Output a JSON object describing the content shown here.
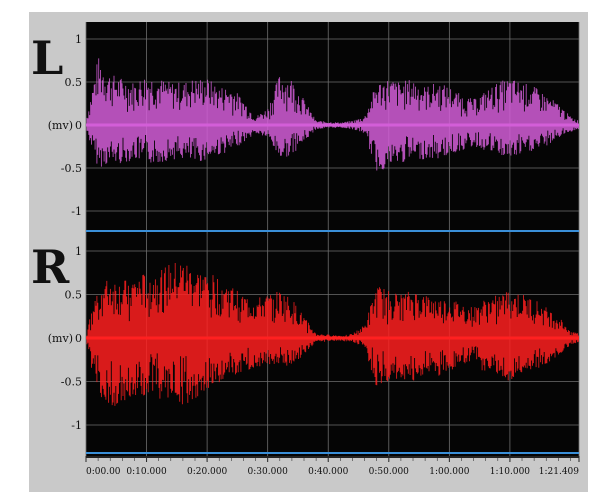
{
  "chart_data": [
    {
      "type": "line",
      "channel_label": "L",
      "ylabel": "(mv)",
      "yticks": [
        "1",
        "0.5",
        "0",
        "-0.5",
        "-1"
      ],
      "ylim": [
        -1.15,
        1.15
      ],
      "grid": true,
      "color": "#d35ed8",
      "x": [
        0,
        2,
        4,
        6,
        8,
        10,
        12,
        14,
        16,
        18,
        20,
        22,
        24,
        26,
        28,
        30,
        32,
        34,
        36,
        38,
        40,
        42,
        44,
        46,
        48,
        50,
        52,
        54,
        56,
        58,
        60,
        62,
        64,
        66,
        68,
        70,
        72,
        74,
        76,
        78,
        80,
        81.409
      ],
      "y_upper": [
        0.05,
        0.8,
        0.6,
        0.55,
        0.5,
        0.6,
        0.55,
        0.5,
        0.5,
        0.55,
        0.55,
        0.45,
        0.45,
        0.3,
        0.1,
        0.2,
        0.6,
        0.55,
        0.3,
        0.05,
        0.04,
        0.03,
        0.05,
        0.1,
        0.5,
        0.55,
        0.5,
        0.55,
        0.45,
        0.5,
        0.45,
        0.35,
        0.3,
        0.4,
        0.5,
        0.55,
        0.5,
        0.45,
        0.35,
        0.25,
        0.1,
        0.05
      ],
      "y_lower": [
        -0.05,
        -0.5,
        -0.45,
        -0.45,
        -0.4,
        -0.45,
        -0.45,
        -0.4,
        -0.4,
        -0.45,
        -0.4,
        -0.35,
        -0.3,
        -0.2,
        -0.1,
        -0.15,
        -0.4,
        -0.35,
        -0.2,
        -0.05,
        -0.04,
        -0.03,
        -0.05,
        -0.1,
        -0.55,
        -0.5,
        -0.45,
        -0.4,
        -0.4,
        -0.4,
        -0.35,
        -0.3,
        -0.25,
        -0.3,
        -0.35,
        -0.4,
        -0.35,
        -0.3,
        -0.25,
        -0.15,
        -0.08,
        -0.05
      ]
    },
    {
      "type": "line",
      "channel_label": "R",
      "ylabel": "(mv)",
      "yticks": [
        "1",
        "0.5",
        "0",
        "-0.5",
        "-1"
      ],
      "ylim": [
        -1.15,
        1.15
      ],
      "grid": true,
      "color": "#ff2020",
      "x": [
        0,
        2,
        4,
        6,
        8,
        10,
        12,
        14,
        16,
        18,
        20,
        22,
        24,
        26,
        28,
        30,
        32,
        34,
        36,
        38,
        40,
        42,
        44,
        46,
        48,
        50,
        52,
        54,
        56,
        58,
        60,
        62,
        64,
        66,
        68,
        70,
        72,
        74,
        76,
        78,
        80,
        81.409
      ],
      "y_upper": [
        0.05,
        0.6,
        0.7,
        0.65,
        0.7,
        0.75,
        0.8,
        0.85,
        0.9,
        0.8,
        0.75,
        0.7,
        0.6,
        0.5,
        0.45,
        0.5,
        0.55,
        0.45,
        0.25,
        0.05,
        0.04,
        0.03,
        0.05,
        0.15,
        0.6,
        0.55,
        0.5,
        0.55,
        0.5,
        0.45,
        0.45,
        0.4,
        0.35,
        0.45,
        0.5,
        0.55,
        0.5,
        0.45,
        0.35,
        0.25,
        0.1,
        0.05
      ],
      "y_lower": [
        -0.05,
        -0.7,
        -0.8,
        -0.75,
        -0.7,
        -0.65,
        -0.7,
        -0.75,
        -0.8,
        -0.7,
        -0.6,
        -0.55,
        -0.45,
        -0.4,
        -0.35,
        -0.3,
        -0.35,
        -0.3,
        -0.2,
        -0.05,
        -0.04,
        -0.03,
        -0.05,
        -0.1,
        -0.6,
        -0.55,
        -0.5,
        -0.5,
        -0.45,
        -0.45,
        -0.4,
        -0.35,
        -0.3,
        -0.4,
        -0.45,
        -0.5,
        -0.45,
        -0.4,
        -0.3,
        -0.2,
        -0.08,
        -0.05
      ]
    }
  ],
  "xaxis": {
    "ticks": [
      "0:00.00",
      "0:10.000",
      "0:20.000",
      "0:30.000",
      "0:40.000",
      "0:50.000",
      "1:00.000",
      "1:10.000",
      "1:21.409"
    ],
    "tick_values": [
      0,
      10,
      20,
      30,
      40,
      50,
      60,
      70,
      81.409
    ],
    "xlim": [
      0,
      81.409
    ]
  },
  "colors": {
    "panel_bg": "#050505",
    "frame_bg": "#c9c9c9",
    "grid": "#6e6e6e",
    "separator": "#3a8fd8"
  }
}
